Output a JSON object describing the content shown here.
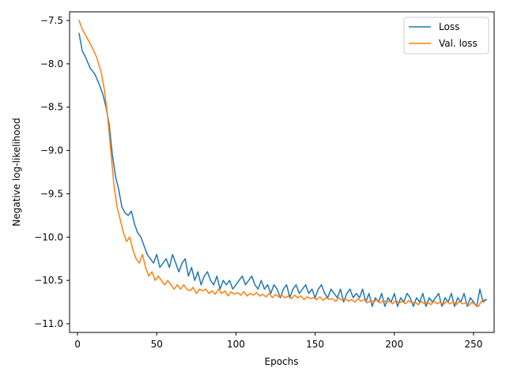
{
  "chart_data": {
    "type": "line",
    "title": "",
    "xlabel": "Epochs",
    "ylabel": "Negative log-likelihood",
    "xlim": [
      -5,
      263
    ],
    "ylim": [
      -11.1,
      -7.4
    ],
    "xticks": [
      0,
      50,
      100,
      150,
      200,
      250
    ],
    "yticks": [
      -7.5,
      -8.0,
      -8.5,
      -9.0,
      -9.5,
      -10.0,
      -10.5,
      -11.0
    ],
    "xtick_labels": [
      "0",
      "50",
      "100",
      "150",
      "200",
      "250"
    ],
    "ytick_labels": [
      "−7.5",
      "−8.0",
      "−8.5",
      "−9.0",
      "−9.5",
      "−10.0",
      "−10.5",
      "−11.0"
    ],
    "grid": false,
    "legend_position": "top-right",
    "series": [
      {
        "name": "Loss",
        "color": "#1f77b4",
        "points": [
          [
            1,
            -7.65
          ],
          [
            2,
            -7.75
          ],
          [
            3,
            -7.85
          ],
          [
            5,
            -7.92
          ],
          [
            8,
            -8.05
          ],
          [
            11,
            -8.12
          ],
          [
            14,
            -8.25
          ],
          [
            16,
            -8.35
          ],
          [
            18,
            -8.5
          ],
          [
            20,
            -8.7
          ],
          [
            22,
            -9.05
          ],
          [
            24,
            -9.3
          ],
          [
            26,
            -9.45
          ],
          [
            28,
            -9.65
          ],
          [
            30,
            -9.72
          ],
          [
            32,
            -9.75
          ],
          [
            34,
            -9.7
          ],
          [
            36,
            -9.85
          ],
          [
            38,
            -9.95
          ],
          [
            40,
            -10.0
          ],
          [
            42,
            -10.1
          ],
          [
            44,
            -10.2
          ],
          [
            46,
            -10.25
          ],
          [
            48,
            -10.3
          ],
          [
            50,
            -10.2
          ],
          [
            52,
            -10.35
          ],
          [
            54,
            -10.3
          ],
          [
            56,
            -10.25
          ],
          [
            58,
            -10.35
          ],
          [
            60,
            -10.2
          ],
          [
            62,
            -10.3
          ],
          [
            64,
            -10.4
          ],
          [
            66,
            -10.3
          ],
          [
            68,
            -10.25
          ],
          [
            70,
            -10.45
          ],
          [
            72,
            -10.35
          ],
          [
            74,
            -10.5
          ],
          [
            76,
            -10.4
          ],
          [
            78,
            -10.55
          ],
          [
            80,
            -10.45
          ],
          [
            82,
            -10.4
          ],
          [
            84,
            -10.5
          ],
          [
            86,
            -10.55
          ],
          [
            88,
            -10.45
          ],
          [
            90,
            -10.6
          ],
          [
            92,
            -10.5
          ],
          [
            94,
            -10.55
          ],
          [
            96,
            -10.5
          ],
          [
            98,
            -10.6
          ],
          [
            100,
            -10.55
          ],
          [
            102,
            -10.5
          ],
          [
            104,
            -10.45
          ],
          [
            106,
            -10.55
          ],
          [
            108,
            -10.5
          ],
          [
            110,
            -10.45
          ],
          [
            112,
            -10.55
          ],
          [
            114,
            -10.6
          ],
          [
            116,
            -10.5
          ],
          [
            118,
            -10.6
          ],
          [
            120,
            -10.55
          ],
          [
            122,
            -10.65
          ],
          [
            124,
            -10.55
          ],
          [
            126,
            -10.6
          ],
          [
            128,
            -10.7
          ],
          [
            130,
            -10.6
          ],
          [
            132,
            -10.55
          ],
          [
            134,
            -10.7
          ],
          [
            136,
            -10.6
          ],
          [
            138,
            -10.55
          ],
          [
            140,
            -10.65
          ],
          [
            142,
            -10.6
          ],
          [
            144,
            -10.55
          ],
          [
            146,
            -10.65
          ],
          [
            148,
            -10.6
          ],
          [
            150,
            -10.7
          ],
          [
            152,
            -10.6
          ],
          [
            154,
            -10.55
          ],
          [
            156,
            -10.65
          ],
          [
            158,
            -10.7
          ],
          [
            160,
            -10.6
          ],
          [
            162,
            -10.65
          ],
          [
            164,
            -10.7
          ],
          [
            166,
            -10.6
          ],
          [
            168,
            -10.75
          ],
          [
            170,
            -10.65
          ],
          [
            172,
            -10.6
          ],
          [
            174,
            -10.7
          ],
          [
            176,
            -10.65
          ],
          [
            178,
            -10.7
          ],
          [
            180,
            -10.6
          ],
          [
            182,
            -10.75
          ],
          [
            184,
            -10.65
          ],
          [
            186,
            -10.8
          ],
          [
            188,
            -10.7
          ],
          [
            190,
            -10.75
          ],
          [
            192,
            -10.65
          ],
          [
            194,
            -10.8
          ],
          [
            196,
            -10.7
          ],
          [
            198,
            -10.75
          ],
          [
            200,
            -10.65
          ],
          [
            202,
            -10.8
          ],
          [
            204,
            -10.7
          ],
          [
            206,
            -10.75
          ],
          [
            208,
            -10.65
          ],
          [
            210,
            -10.7
          ],
          [
            212,
            -10.8
          ],
          [
            214,
            -10.7
          ],
          [
            216,
            -10.75
          ],
          [
            218,
            -10.65
          ],
          [
            220,
            -10.8
          ],
          [
            222,
            -10.7
          ],
          [
            224,
            -10.75
          ],
          [
            226,
            -10.7
          ],
          [
            228,
            -10.65
          ],
          [
            230,
            -10.8
          ],
          [
            232,
            -10.7
          ],
          [
            234,
            -10.75
          ],
          [
            236,
            -10.65
          ],
          [
            238,
            -10.8
          ],
          [
            240,
            -10.7
          ],
          [
            242,
            -10.75
          ],
          [
            244,
            -10.65
          ],
          [
            246,
            -10.8
          ],
          [
            248,
            -10.7
          ],
          [
            250,
            -10.75
          ],
          [
            252,
            -10.8
          ],
          [
            254,
            -10.6
          ],
          [
            256,
            -10.75
          ],
          [
            258,
            -10.72
          ]
        ]
      },
      {
        "name": "Val. loss",
        "color": "#ff7f0e",
        "points": [
          [
            1,
            -7.5
          ],
          [
            3,
            -7.6
          ],
          [
            6,
            -7.7
          ],
          [
            9,
            -7.8
          ],
          [
            12,
            -7.92
          ],
          [
            15,
            -8.1
          ],
          [
            17,
            -8.3
          ],
          [
            19,
            -8.6
          ],
          [
            21,
            -9.0
          ],
          [
            23,
            -9.4
          ],
          [
            25,
            -9.65
          ],
          [
            27,
            -9.8
          ],
          [
            29,
            -9.95
          ],
          [
            31,
            -10.05
          ],
          [
            33,
            -10.0
          ],
          [
            35,
            -10.15
          ],
          [
            37,
            -10.25
          ],
          [
            39,
            -10.3
          ],
          [
            41,
            -10.2
          ],
          [
            43,
            -10.35
          ],
          [
            45,
            -10.45
          ],
          [
            47,
            -10.4
          ],
          [
            49,
            -10.5
          ],
          [
            51,
            -10.45
          ],
          [
            53,
            -10.5
          ],
          [
            55,
            -10.55
          ],
          [
            57,
            -10.5
          ],
          [
            59,
            -10.55
          ],
          [
            61,
            -10.6
          ],
          [
            63,
            -10.55
          ],
          [
            65,
            -10.6
          ],
          [
            67,
            -10.55
          ],
          [
            69,
            -10.6
          ],
          [
            71,
            -10.62
          ],
          [
            73,
            -10.58
          ],
          [
            75,
            -10.65
          ],
          [
            77,
            -10.6
          ],
          [
            79,
            -10.62
          ],
          [
            81,
            -10.6
          ],
          [
            83,
            -10.65
          ],
          [
            85,
            -10.62
          ],
          [
            87,
            -10.66
          ],
          [
            89,
            -10.6
          ],
          [
            91,
            -10.65
          ],
          [
            93,
            -10.62
          ],
          [
            95,
            -10.68
          ],
          [
            97,
            -10.63
          ],
          [
            99,
            -10.66
          ],
          [
            101,
            -10.64
          ],
          [
            103,
            -10.67
          ],
          [
            105,
            -10.63
          ],
          [
            107,
            -10.68
          ],
          [
            109,
            -10.65
          ],
          [
            111,
            -10.67
          ],
          [
            113,
            -10.64
          ],
          [
            115,
            -10.68
          ],
          [
            117,
            -10.66
          ],
          [
            119,
            -10.69
          ],
          [
            121,
            -10.65
          ],
          [
            123,
            -10.7
          ],
          [
            125,
            -10.66
          ],
          [
            127,
            -10.69
          ],
          [
            129,
            -10.67
          ],
          [
            131,
            -10.7
          ],
          [
            133,
            -10.68
          ],
          [
            135,
            -10.71
          ],
          [
            137,
            -10.67
          ],
          [
            139,
            -10.7
          ],
          [
            141,
            -10.68
          ],
          [
            143,
            -10.72
          ],
          [
            145,
            -10.69
          ],
          [
            147,
            -10.71
          ],
          [
            149,
            -10.7
          ],
          [
            151,
            -10.72
          ],
          [
            153,
            -10.69
          ],
          [
            155,
            -10.73
          ],
          [
            157,
            -10.7
          ],
          [
            159,
            -10.72
          ],
          [
            161,
            -10.71
          ],
          [
            163,
            -10.74
          ],
          [
            165,
            -10.7
          ],
          [
            167,
            -10.73
          ],
          [
            169,
            -10.71
          ],
          [
            171,
            -10.74
          ],
          [
            173,
            -10.72
          ],
          [
            175,
            -10.75
          ],
          [
            177,
            -10.71
          ],
          [
            179,
            -10.74
          ],
          [
            181,
            -10.72
          ],
          [
            183,
            -10.76
          ],
          [
            185,
            -10.73
          ],
          [
            187,
            -10.75
          ],
          [
            189,
            -10.72
          ],
          [
            191,
            -10.76
          ],
          [
            193,
            -10.73
          ],
          [
            195,
            -10.75
          ],
          [
            197,
            -10.74
          ],
          [
            199,
            -10.77
          ],
          [
            201,
            -10.73
          ],
          [
            203,
            -10.76
          ],
          [
            205,
            -10.74
          ],
          [
            207,
            -10.77
          ],
          [
            209,
            -10.73
          ],
          [
            211,
            -10.76
          ],
          [
            213,
            -10.75
          ],
          [
            215,
            -10.78
          ],
          [
            217,
            -10.74
          ],
          [
            219,
            -10.77
          ],
          [
            221,
            -10.75
          ],
          [
            223,
            -10.78
          ],
          [
            225,
            -10.74
          ],
          [
            227,
            -10.77
          ],
          [
            229,
            -10.75
          ],
          [
            231,
            -10.78
          ],
          [
            233,
            -10.74
          ],
          [
            235,
            -10.77
          ],
          [
            237,
            -10.75
          ],
          [
            239,
            -10.78
          ],
          [
            241,
            -10.74
          ],
          [
            243,
            -10.77
          ],
          [
            245,
            -10.76
          ],
          [
            247,
            -10.79
          ],
          [
            249,
            -10.75
          ],
          [
            251,
            -10.78
          ],
          [
            253,
            -10.8
          ],
          [
            255,
            -10.74
          ],
          [
            257,
            -10.72
          ]
        ]
      }
    ]
  }
}
